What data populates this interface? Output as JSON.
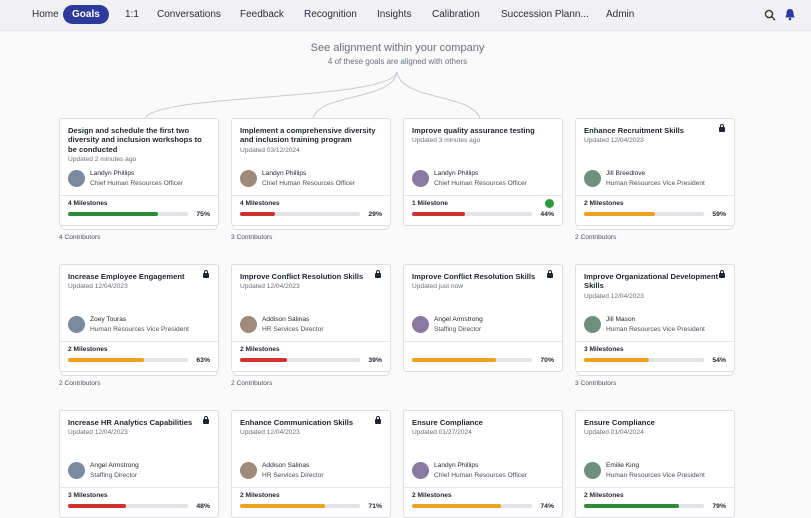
{
  "nav": {
    "items": [
      "Home",
      "Goals",
      "1:1",
      "Conversations",
      "Feedback",
      "Recognition",
      "Insights",
      "Calibration",
      "Succession Plann...",
      "Admin"
    ],
    "active": 1
  },
  "header": {
    "title": "See alignment within your company",
    "subtitle": "4 of these goals are aligned with others"
  },
  "goals": [
    {
      "title": "Design and schedule the first two diversity and inclusion workshops to be conducted",
      "updated": "Updated 2 minutes ago",
      "owner": "Landyn Phillips",
      "role": "Chief Human Resources Officer",
      "milestones": "4 Milestones",
      "progress": 75,
      "progress_label": "75%",
      "color": "#2e8b3a",
      "contributors": "4 Contributors",
      "locked": false,
      "on_track": false
    },
    {
      "title": "Implement a comprehensive diversity and inclusion training program",
      "updated": "Updated 03/12/2024",
      "owner": "Landyn Phillips",
      "role": "Chief Human Resources Officer",
      "milestones": "4 Milestones",
      "progress": 29,
      "progress_label": "29%",
      "color": "#d0312d",
      "contributors": "3 Contributors",
      "locked": false,
      "on_track": false
    },
    {
      "title": "Improve quality assurance testing",
      "updated": "Updated 3 minutes ago",
      "owner": "Landyn Phillips",
      "role": "Chief Human Resources Officer",
      "milestones": "1 Milestone",
      "progress": 44,
      "progress_label": "44%",
      "color": "#d0312d",
      "contributors": null,
      "locked": false,
      "on_track": true
    },
    {
      "title": "Enhance Recruitment Skills",
      "updated": "Updated 12/04/2023",
      "owner": "Jill Breedlove",
      "role": "Human Resources Vice President",
      "milestones": "2 Milestones",
      "progress": 59,
      "progress_label": "59%",
      "color": "#f0a020",
      "contributors": "2 Contributors",
      "locked": true,
      "on_track": false
    },
    {
      "title": "Increase Employee Engagement",
      "updated": "Updated 12/04/2023",
      "owner": "Zoey Touras",
      "role": "Human Resources Vice President",
      "milestones": "2 Milestones",
      "progress": 63,
      "progress_label": "63%",
      "color": "#f0a020",
      "contributors": "2 Contributors",
      "locked": true,
      "on_track": false
    },
    {
      "title": "Improve Conflict Resolution Skills",
      "updated": "Updated 12/04/2023",
      "owner": "Addison Salinas",
      "role": "HR Services Director",
      "milestones": "2 Milestones",
      "progress": 39,
      "progress_label": "39%",
      "color": "#d0312d",
      "contributors": "2 Contributors",
      "locked": true,
      "on_track": false
    },
    {
      "title": "Improve Conflict Resolution Skills",
      "updated": "Updated just now",
      "owner": "Angel Armstrong",
      "role": "Staffing Director",
      "milestones": null,
      "progress": 70,
      "progress_label": "70%",
      "color": "#f0a020",
      "contributors": null,
      "locked": true,
      "on_track": false
    },
    {
      "title": "Improve Organizational Development Skills",
      "updated": "Updated 12/04/2023",
      "owner": "Jill Mason",
      "role": "Human Resources Vice President",
      "milestones": "3 Milestones",
      "progress": 54,
      "progress_label": "54%",
      "color": "#f0a020",
      "contributors": "3 Contributors",
      "locked": true,
      "on_track": false
    },
    {
      "title": "Increase HR Analytics Capabilities",
      "updated": "Updated 12/04/2023",
      "owner": "Angel Armstrong",
      "role": "Staffing Director",
      "milestones": "3 Milestones",
      "progress": 48,
      "progress_label": "48%",
      "color": "#d0312d",
      "contributors": null,
      "locked": true,
      "on_track": false
    },
    {
      "title": "Enhance Communication Skills",
      "updated": "Updated 12/04/2023",
      "owner": "Addison Salinas",
      "role": "HR Services Director",
      "milestones": "2 Milestones",
      "progress": 71,
      "progress_label": "71%",
      "color": "#f0a020",
      "contributors": null,
      "locked": true,
      "on_track": false
    },
    {
      "title": "Ensure Compliance",
      "updated": "Updated 01/27/2024",
      "owner": "Landyn Phillips",
      "role": "Chief Human Resources Officer",
      "milestones": "2 Milestones",
      "progress": 74,
      "progress_label": "74%",
      "color": "#f0a020",
      "contributors": null,
      "locked": false,
      "on_track": false
    },
    {
      "title": "Ensure Compliance",
      "updated": "Updated 01/04/2024",
      "owner": "Emilie King",
      "role": "Human Resources Vice President",
      "milestones": "2 Milestones",
      "progress": 79,
      "progress_label": "79%",
      "color": "#2e8b3a",
      "contributors": null,
      "locked": false,
      "on_track": false
    }
  ]
}
